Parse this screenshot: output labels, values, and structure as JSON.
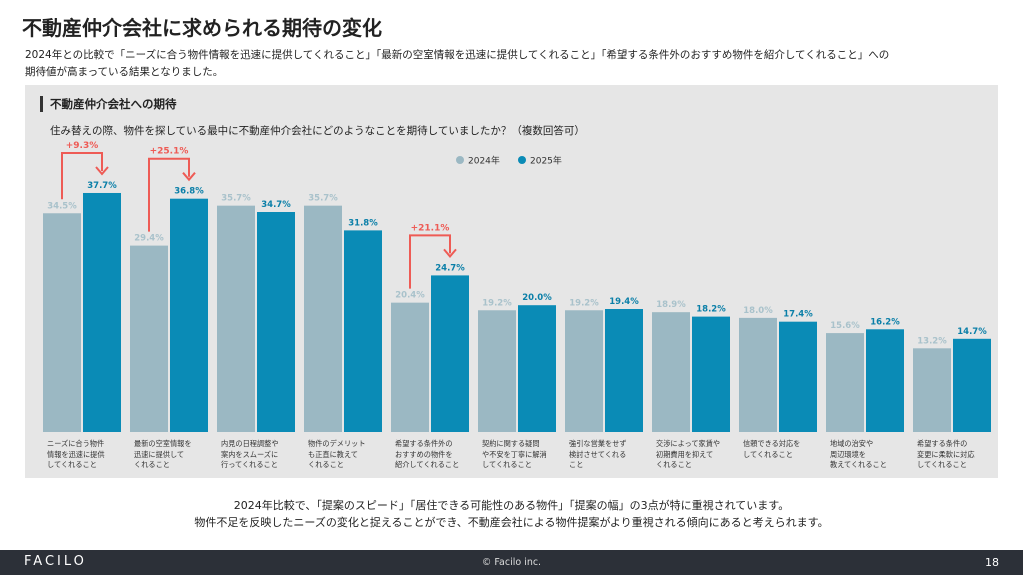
{
  "header": {
    "title": "不動産仲介会社に求められる期待の変化",
    "subtitle": "2024年との比較で「ニーズに合う物件情報を迅速に提供してくれること」「最新の空室情報を迅速に提供してくれること」「希望する条件外のおすすめ物件を紹介してくれること」への\n期待値が高まっている結果となりました。"
  },
  "chart_data": {
    "type": "bar",
    "title": "不動産仲介会社への期待",
    "subtitle": "住み替えの際、物件を探している最中に不動産仲介会社にどのようなことを期待していましたか？（複数回答可）",
    "categories": [
      "ニーズに合う物件\n情報を迅速に提供\nしてくれること",
      "最新の空室情報を\n迅速に提供して\nくれること",
      "内見の日程調整や\n案内をスムーズに\n行ってくれること",
      "物件のデメリット\nも正直に教えて\nくれること",
      "希望する条件外の\nおすすめの物件を\n紹介してくれること",
      "契約に関する疑問\nや不安を丁寧に解消\nしてくれること",
      "強引な営業をせず\n検討させてくれる\nこと",
      "交渉によって家賃や\n初期費用を抑えて\nくれること",
      "信頼できる対応を\nしてくれること",
      "地域の治安や\n周辺環境を\n教えてくれること",
      "希望する条件の\n変更に柔軟に対応\nしてくれること"
    ],
    "series": [
      {
        "name": "2024年",
        "color": "#9bb8c3",
        "label_color": "#a9c2cb",
        "values": [
          34.5,
          29.4,
          35.7,
          35.7,
          20.4,
          19.2,
          19.2,
          18.9,
          18.0,
          15.6,
          13.2
        ],
        "value_labels": [
          "34.5%",
          "29.4%",
          "35.7%",
          "35.7%",
          "20.4%",
          "19.2%",
          "19.2%",
          "18.9%",
          "18.0%",
          "15.6%",
          "13.2%"
        ]
      },
      {
        "name": "2025年",
        "color": "#0a8bb6",
        "label_color": "#0a7fa8",
        "values": [
          37.7,
          36.8,
          34.7,
          31.8,
          24.7,
          20.0,
          19.4,
          18.2,
          17.4,
          16.2,
          14.7
        ],
        "value_labels": [
          "37.7%",
          "36.8%",
          "34.7%",
          "31.8%",
          "24.7%",
          "20.0%",
          "19.4%",
          "18.2%",
          "17.4%",
          "16.2%",
          "14.7%"
        ]
      }
    ],
    "change_labels": [
      "+9.3%",
      "+25.1%",
      null,
      null,
      "+21.1%",
      null,
      null,
      null,
      null,
      null,
      null
    ],
    "change_color": "#ee5b55"
  },
  "note": "2024年比較で、「提案のスピード」「居住できる可能性のある物件」「提案の幅」の3点が特に重視されています。\n物件不足を反映したニーズの変化と捉えることができ、不動産会社による物件提案がより重視される傾向にあると考えられます。",
  "footer": {
    "logo": "FACILO",
    "copyright": "© Facilo inc.",
    "page": "18"
  }
}
